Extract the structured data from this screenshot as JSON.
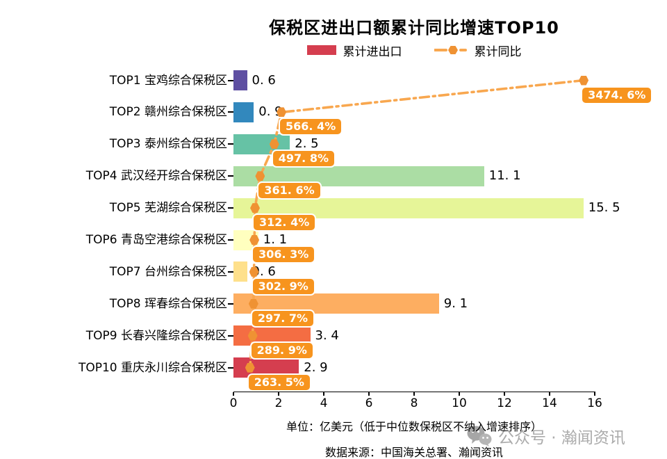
{
  "title": "保税区进出口额累计同比增速TOP10",
  "legend": {
    "items": [
      {
        "label": "累计进出口",
        "marker": "bar-swatch",
        "color": "#d53e4f"
      },
      {
        "label": "累计同比",
        "marker": "line-dot",
        "color": "#f8a74f",
        "dot_color": "#ef9233"
      }
    ]
  },
  "chart_data": {
    "type": "bar",
    "subtype": "horizontal-bars-with-secondary-line",
    "title": "保税区进出口额累计同比增速TOP10",
    "orientation": "horizontal",
    "legend_position": "top",
    "grid": false,
    "categories": [
      "TOP1 宝鸡综合保税区",
      "TOP2 赣州综合保税区",
      "TOP3 泰州综合保税区",
      "TOP4 武汉经开综合保税区",
      "TOP5 芜湖综合保税区",
      "TOP6 青岛空港综合保税区",
      "TOP7 台州综合保税区",
      "TOP8 珲春综合保税区",
      "TOP9 长春兴隆综合保税区",
      "TOP10 重庆永川综合保税区"
    ],
    "series": [
      {
        "name": "累计进出口",
        "type": "bar",
        "unit": "亿美元",
        "values": [
          0.6,
          0.9,
          2.5,
          11.1,
          15.5,
          1.1,
          0.6,
          9.1,
          3.4,
          2.9
        ],
        "value_labels": [
          "0. 6",
          "0. 9",
          "2. 5",
          "11. 1",
          "15. 5",
          "1. 1",
          "0. 6",
          "9. 1",
          "3. 4",
          "2. 9"
        ],
        "bar_colors": [
          "#5e4fa2",
          "#3288bd",
          "#66c2a5",
          "#abdda4",
          "#e6f598",
          "#ffffbf",
          "#fee08b",
          "#fdae61",
          "#f46d43",
          "#d53e4f"
        ]
      },
      {
        "name": "累计同比",
        "type": "line",
        "unit": "%",
        "values": [
          3474.6,
          566.4,
          497.8,
          361.6,
          312.4,
          306.3,
          302.9,
          297.7,
          289.9,
          263.5
        ],
        "value_labels": [
          "3474. 6%",
          "566. 4%",
          "497. 8%",
          "361. 6%",
          "312. 4%",
          "306. 3%",
          "302. 9%",
          "297. 7%",
          "289. 9%",
          "263. 5%"
        ],
        "line_color": "#f8a74f",
        "marker_color": "#ef9233",
        "label_bg": "#f7941e",
        "label_text_color": "#ffffff"
      }
    ],
    "x_axis": {
      "min": 0,
      "max": 16,
      "ticks": [
        0,
        2,
        4,
        6,
        8,
        10,
        12,
        14,
        16
      ]
    }
  },
  "footer": {
    "unit_note": "单位：亿美元（低于中位数保税区不纳入增速排序）",
    "source": "数据来源：中国海关总署、瀚闻资讯"
  },
  "watermark": {
    "icon": "wechat-icon",
    "text": "公众号 · 瀚闻资讯"
  }
}
